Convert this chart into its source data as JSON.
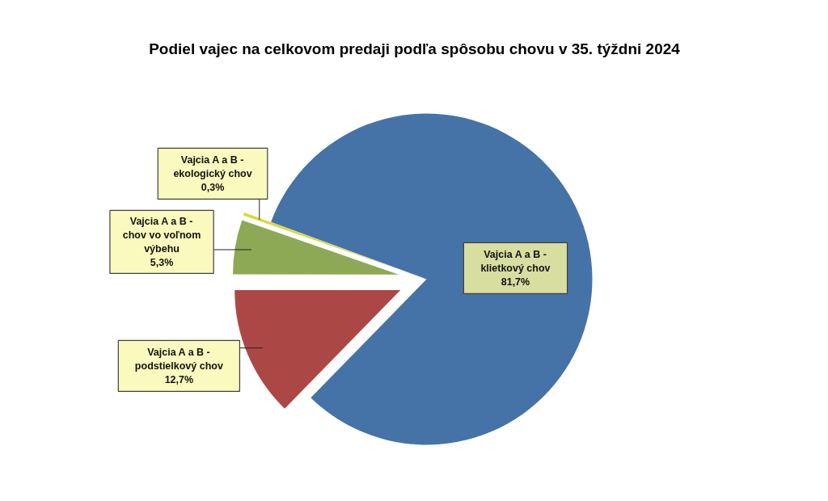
{
  "chart_data": {
    "type": "pie",
    "title": "Podiel vajec na celkovom predaji podľa spôsobu chovu v 35. týždni 2024",
    "categories": [
      "Vajcia A a B - klietkový chov",
      "Vajcia A a B - podstielkový chov",
      "Vajcia A a B - chov vo voľnom výbehu",
      "Vajcia A a B - ekologický chov"
    ],
    "values": [
      81.7,
      12.7,
      5.3,
      0.3
    ],
    "value_labels": [
      "81,7%",
      "12,7%",
      "5,3%",
      "0,3%"
    ],
    "colors": [
      "#4673a7",
      "#ab4845",
      "#8ea955",
      "#dcd830"
    ]
  }
}
